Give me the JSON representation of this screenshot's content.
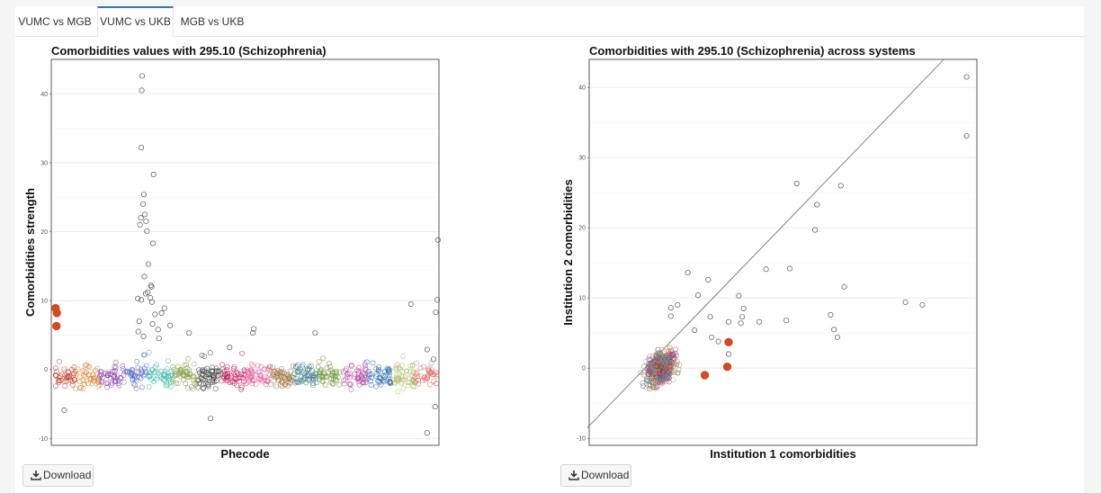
{
  "tabs": [
    "VUMC vs MGB",
    "VUMC vs UKB",
    "MGB vs UKB"
  ],
  "active_tab": 1,
  "download_label": "Download",
  "colors": {
    "highlight": "#d24a1f",
    "diagonal": "#666666",
    "tab_accent": "#2e7ab8"
  },
  "chart_data": [
    {
      "type": "scatter",
      "title": "Comorbidities values with 295.10 (Schizophrenia)",
      "xlabel": "Phecode",
      "ylabel": "Comorbidities strength",
      "xlim": [
        0,
        1800
      ],
      "ylim": [
        -11,
        45
      ],
      "yticks": [
        -10,
        0,
        10,
        20,
        30,
        40
      ],
      "xticks": [],
      "grid": true,
      "highlight_points": [
        {
          "x": 20,
          "y": 8.9
        },
        {
          "x": 26,
          "y": 8.2
        },
        {
          "x": 24,
          "y": 6.3
        }
      ],
      "outlier_points": [
        {
          "x": 422,
          "y": 42.6
        },
        {
          "x": 420,
          "y": 40.5
        },
        {
          "x": 418,
          "y": 32.2
        },
        {
          "x": 475,
          "y": 28.3
        },
        {
          "x": 430,
          "y": 25.4
        },
        {
          "x": 426,
          "y": 24.0
        },
        {
          "x": 434,
          "y": 22.5
        },
        {
          "x": 416,
          "y": 22.0
        },
        {
          "x": 440,
          "y": 21.5
        },
        {
          "x": 412,
          "y": 21.0
        },
        {
          "x": 444,
          "y": 20.1
        },
        {
          "x": 472,
          "y": 18.3
        },
        {
          "x": 450,
          "y": 15.3
        },
        {
          "x": 432,
          "y": 13.5
        },
        {
          "x": 462,
          "y": 12.2
        },
        {
          "x": 466,
          "y": 12.0
        },
        {
          "x": 448,
          "y": 11.2
        },
        {
          "x": 438,
          "y": 11.0
        },
        {
          "x": 402,
          "y": 10.3
        },
        {
          "x": 418,
          "y": 10.1
        },
        {
          "x": 460,
          "y": 10.4
        },
        {
          "x": 468,
          "y": 9.8
        },
        {
          "x": 525,
          "y": 8.9
        },
        {
          "x": 512,
          "y": 8.2
        },
        {
          "x": 482,
          "y": 8.0
        },
        {
          "x": 408,
          "y": 7.0
        },
        {
          "x": 552,
          "y": 6.4
        },
        {
          "x": 470,
          "y": 6.6
        },
        {
          "x": 496,
          "y": 5.8
        },
        {
          "x": 404,
          "y": 5.5
        },
        {
          "x": 428,
          "y": 4.8
        },
        {
          "x": 500,
          "y": 4.5
        },
        {
          "x": 1670,
          "y": 9.5
        },
        {
          "x": 1795,
          "y": 18.8
        },
        {
          "x": 1792,
          "y": 10.1
        },
        {
          "x": 1785,
          "y": 8.3
        },
        {
          "x": 1745,
          "y": -9.2
        },
        {
          "x": 60,
          "y": -5.9
        },
        {
          "x": 1225,
          "y": 5.3
        },
        {
          "x": 940,
          "y": 5.9
        },
        {
          "x": 936,
          "y": 5.3
        },
        {
          "x": 640,
          "y": 5.3
        },
        {
          "x": 828,
          "y": 3.2
        },
        {
          "x": 740,
          "y": -7.1
        },
        {
          "x": 1775,
          "y": 1.5
        },
        {
          "x": 1782,
          "y": -5.4
        },
        {
          "x": 1745,
          "y": 2.9
        }
      ]
    },
    {
      "type": "scatter",
      "title": "Comorbidities with 295.10 (Schizophrenia) across systems",
      "xlabel": "Institution 1 comorbidities",
      "ylabel": "Institution 2 comorbidities",
      "xlim": [
        -10,
        47
      ],
      "ylim": [
        -11,
        44
      ],
      "yticks": [
        -10,
        0,
        10,
        20,
        30,
        40
      ],
      "xticks": [],
      "grid": true,
      "diagonal": true,
      "highlight_points": [
        {
          "x": 10.5,
          "y": 3.7
        },
        {
          "x": 10.3,
          "y": 0.2
        },
        {
          "x": 7.0,
          "y": -1.0
        }
      ],
      "outlier_points": [
        {
          "x": 45.5,
          "y": 41.5
        },
        {
          "x": 45.5,
          "y": 33.1
        },
        {
          "x": 20.5,
          "y": 26.3
        },
        {
          "x": 27.0,
          "y": 26.0
        },
        {
          "x": 23.5,
          "y": 23.3
        },
        {
          "x": 23.2,
          "y": 19.7
        },
        {
          "x": 16.0,
          "y": 14.1
        },
        {
          "x": 19.5,
          "y": 14.2
        },
        {
          "x": 4.5,
          "y": 13.6
        },
        {
          "x": 7.5,
          "y": 12.6
        },
        {
          "x": 27.5,
          "y": 11.6
        },
        {
          "x": 12.0,
          "y": 10.3
        },
        {
          "x": 36.5,
          "y": 9.4
        },
        {
          "x": 39.0,
          "y": 9.0
        },
        {
          "x": 12.7,
          "y": 8.5
        },
        {
          "x": 6.0,
          "y": 10.4
        },
        {
          "x": 2.0,
          "y": 8.6
        },
        {
          "x": 3.0,
          "y": 9.0
        },
        {
          "x": 12.5,
          "y": 7.3
        },
        {
          "x": 25.5,
          "y": 7.6
        },
        {
          "x": 7.8,
          "y": 7.3
        },
        {
          "x": 2.0,
          "y": 7.4
        },
        {
          "x": 12.3,
          "y": 6.4
        },
        {
          "x": 10.5,
          "y": 6.6
        },
        {
          "x": 19.0,
          "y": 6.8
        },
        {
          "x": 15.0,
          "y": 6.6
        },
        {
          "x": 26.0,
          "y": 5.5
        },
        {
          "x": 26.5,
          "y": 4.4
        },
        {
          "x": 5.5,
          "y": 5.4
        },
        {
          "x": 8.0,
          "y": 4.4
        },
        {
          "x": 9.0,
          "y": 3.8
        },
        {
          "x": 10.5,
          "y": 2.0
        }
      ],
      "series_note": ""
    }
  ]
}
